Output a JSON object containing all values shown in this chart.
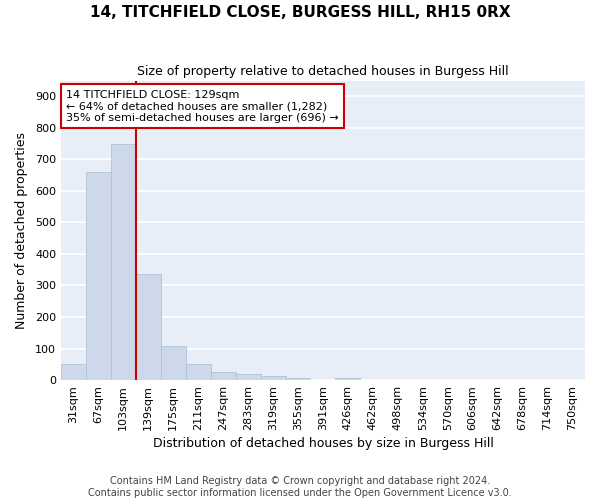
{
  "title1": "14, TITCHFIELD CLOSE, BURGESS HILL, RH15 0RX",
  "title2": "Size of property relative to detached houses in Burgess Hill",
  "xlabel": "Distribution of detached houses by size in Burgess Hill",
  "ylabel": "Number of detached properties",
  "bin_labels": [
    "31sqm",
    "67sqm",
    "103sqm",
    "139sqm",
    "175sqm",
    "211sqm",
    "247sqm",
    "283sqm",
    "319sqm",
    "355sqm",
    "391sqm",
    "426sqm",
    "462sqm",
    "498sqm",
    "534sqm",
    "570sqm",
    "606sqm",
    "642sqm",
    "678sqm",
    "714sqm",
    "750sqm"
  ],
  "bar_heights": [
    50,
    660,
    750,
    335,
    108,
    50,
    25,
    20,
    13,
    7,
    0,
    7,
    0,
    0,
    0,
    0,
    0,
    0,
    0,
    0,
    0
  ],
  "bar_color": "#cdd9ea",
  "bar_edge_color": "#b0c4d8",
  "property_line_label": "14 TITCHFIELD CLOSE: 129sqm",
  "annotation_line1": "← 64% of detached houses are smaller (1,282)",
  "annotation_line2": "35% of semi-detached houses are larger (696) →",
  "line_color": "#cc0000",
  "line_bar_index": 2,
  "ylim": [
    0,
    950
  ],
  "yticks": [
    0,
    100,
    200,
    300,
    400,
    500,
    600,
    700,
    800,
    900
  ],
  "background_color": "#e8eef8",
  "grid_color": "#ffffff",
  "title1_fontsize": 11,
  "title2_fontsize": 9,
  "xlabel_fontsize": 9,
  "ylabel_fontsize": 9,
  "tick_fontsize": 8,
  "annotation_fontsize": 8,
  "footer_fontsize": 7,
  "footer1": "Contains HM Land Registry data © Crown copyright and database right 2024.",
  "footer2": "Contains public sector information licensed under the Open Government Licence v3.0."
}
